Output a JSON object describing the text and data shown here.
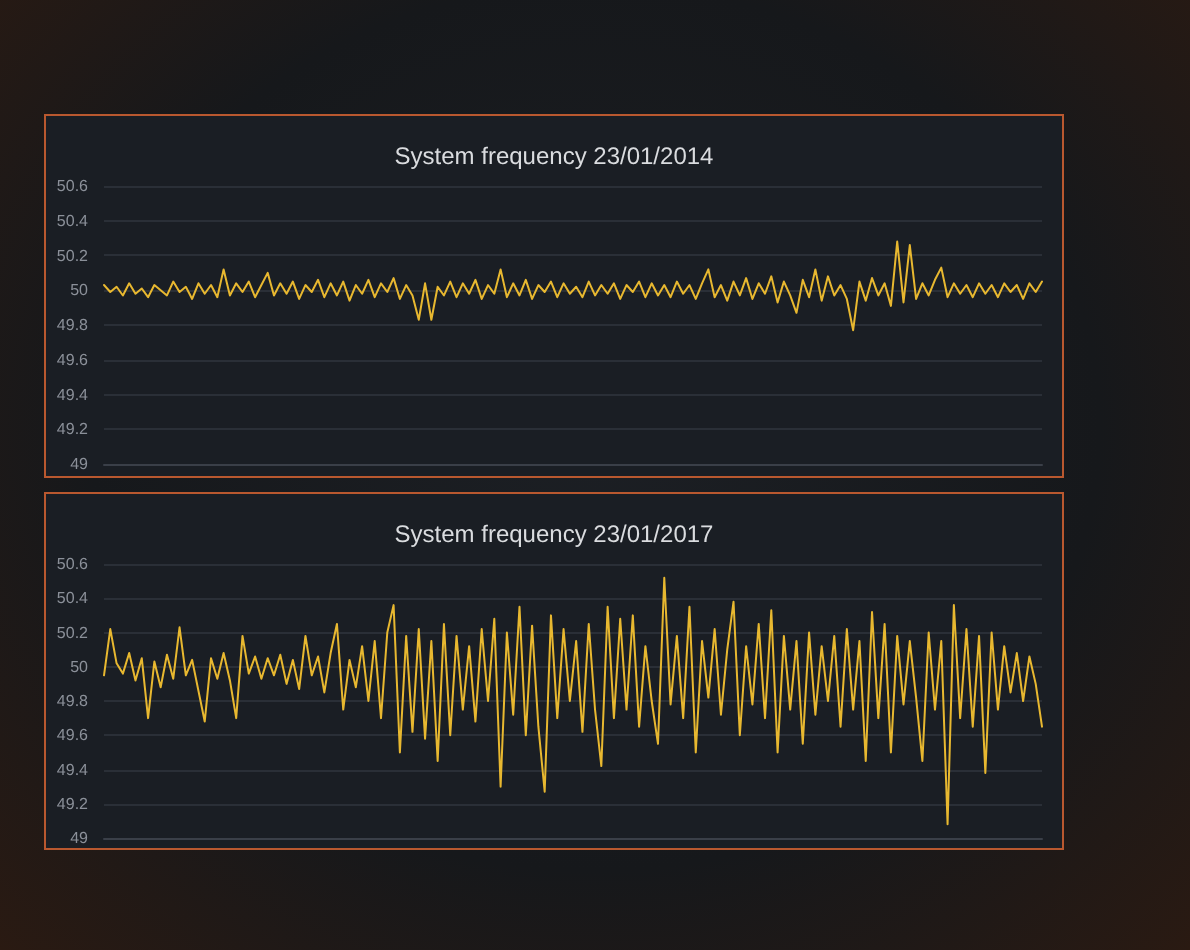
{
  "chart_data": [
    {
      "type": "line",
      "title": "System frequency 23/01/2014",
      "categories": [
        null,
        null,
        null,
        null,
        null,
        null,
        null,
        null,
        null,
        null,
        null,
        null,
        null,
        null,
        null,
        null,
        null,
        null,
        null,
        null,
        null,
        null,
        null,
        null,
        null,
        null,
        null,
        null,
        null,
        null,
        null,
        null,
        null,
        null,
        null,
        null,
        null,
        null,
        null,
        null,
        null,
        null,
        null,
        null,
        null,
        null,
        null,
        null,
        null,
        null,
        null,
        null,
        null,
        null,
        null,
        null,
        null,
        null,
        null,
        null,
        null,
        null,
        null,
        null,
        null,
        null,
        null,
        null,
        null,
        null,
        null,
        null,
        null,
        null,
        null,
        null,
        null,
        null,
        null,
        null,
        null,
        null,
        null,
        null,
        null,
        null,
        null,
        null,
        null,
        null,
        null,
        null,
        null,
        null,
        null,
        null,
        null,
        null,
        null,
        null,
        null,
        null,
        null,
        null,
        null,
        null,
        null,
        null,
        null,
        null,
        null,
        null,
        null,
        null,
        null,
        null,
        null,
        null,
        null,
        null,
        null,
        null,
        null,
        null,
        null,
        null,
        null,
        null,
        null,
        null,
        null,
        null,
        null,
        null,
        null,
        null,
        null,
        null,
        null,
        null,
        null,
        null,
        null,
        null,
        null,
        null,
        null,
        null,
        null,
        null
      ],
      "values": [
        50.03,
        49.99,
        50.02,
        49.97,
        50.04,
        49.98,
        50.01,
        49.96,
        50.03,
        50.0,
        49.97,
        50.05,
        49.99,
        50.02,
        49.95,
        50.04,
        49.98,
        50.03,
        49.96,
        50.12,
        49.97,
        50.04,
        49.99,
        50.05,
        49.96,
        50.03,
        50.1,
        49.97,
        50.04,
        49.98,
        50.05,
        49.95,
        50.03,
        49.99,
        50.06,
        49.96,
        50.04,
        49.97,
        50.05,
        49.94,
        50.03,
        49.98,
        50.06,
        49.96,
        50.04,
        49.99,
        50.07,
        49.95,
        50.03,
        49.97,
        49.83,
        50.04,
        49.83,
        50.02,
        49.97,
        50.05,
        49.96,
        50.04,
        49.98,
        50.06,
        49.95,
        50.03,
        49.98,
        50.12,
        49.96,
        50.04,
        49.97,
        50.06,
        49.95,
        50.03,
        49.99,
        50.05,
        49.96,
        50.04,
        49.98,
        50.02,
        49.96,
        50.05,
        49.97,
        50.03,
        49.98,
        50.04,
        49.95,
        50.03,
        49.99,
        50.05,
        49.96,
        50.04,
        49.97,
        50.03,
        49.96,
        50.05,
        49.98,
        50.03,
        49.95,
        50.04,
        50.12,
        49.96,
        50.03,
        49.94,
        50.05,
        49.97,
        50.07,
        49.95,
        50.04,
        49.98,
        50.08,
        49.93,
        50.05,
        49.97,
        49.87,
        50.06,
        49.96,
        50.12,
        49.94,
        50.08,
        49.97,
        50.03,
        49.95,
        49.77,
        50.05,
        49.94,
        50.07,
        49.97,
        50.04,
        49.91,
        50.28,
        49.93,
        50.26,
        49.95,
        50.04,
        49.97,
        50.06,
        50.13,
        49.96,
        50.04,
        49.98,
        50.03,
        49.96,
        50.04,
        49.98,
        50.03,
        49.96,
        50.04,
        49.99,
        50.03,
        49.95,
        50.04,
        49.99,
        50.05
      ],
      "color": "#e8b830",
      "ylim": [
        49,
        50.6
      ],
      "yticks": [
        49,
        49.2,
        49.4,
        49.6,
        49.8,
        50,
        50.2,
        50.4,
        50.6
      ],
      "grid": "y",
      "tick_labels": "y",
      "line_style": "solid"
    },
    {
      "type": "line",
      "title": "System frequency 23/01/2017",
      "categories": [
        null,
        null,
        null,
        null,
        null,
        null,
        null,
        null,
        null,
        null,
        null,
        null,
        null,
        null,
        null,
        null,
        null,
        null,
        null,
        null,
        null,
        null,
        null,
        null,
        null,
        null,
        null,
        null,
        null,
        null,
        null,
        null,
        null,
        null,
        null,
        null,
        null,
        null,
        null,
        null,
        null,
        null,
        null,
        null,
        null,
        null,
        null,
        null,
        null,
        null,
        null,
        null,
        null,
        null,
        null,
        null,
        null,
        null,
        null,
        null,
        null,
        null,
        null,
        null,
        null,
        null,
        null,
        null,
        null,
        null,
        null,
        null,
        null,
        null,
        null,
        null,
        null,
        null,
        null,
        null,
        null,
        null,
        null,
        null,
        null,
        null,
        null,
        null,
        null,
        null,
        null,
        null,
        null,
        null,
        null,
        null,
        null,
        null,
        null,
        null,
        null,
        null,
        null,
        null,
        null,
        null,
        null,
        null,
        null,
        null,
        null,
        null,
        null,
        null,
        null,
        null,
        null,
        null,
        null,
        null,
        null,
        null,
        null,
        null,
        null,
        null,
        null,
        null,
        null,
        null,
        null,
        null,
        null,
        null,
        null,
        null,
        null,
        null,
        null,
        null,
        null,
        null,
        null,
        null,
        null,
        null,
        null,
        null,
        null,
        null
      ],
      "values": [
        49.95,
        50.22,
        50.02,
        49.96,
        50.08,
        49.92,
        50.05,
        49.7,
        50.03,
        49.88,
        50.07,
        49.93,
        50.23,
        49.95,
        50.04,
        49.86,
        49.68,
        50.05,
        49.93,
        50.08,
        49.92,
        49.7,
        50.18,
        49.96,
        50.06,
        49.93,
        50.05,
        49.95,
        50.07,
        49.9,
        50.04,
        49.87,
        50.18,
        49.95,
        50.06,
        49.85,
        50.08,
        50.25,
        49.75,
        50.04,
        49.88,
        50.12,
        49.8,
        50.15,
        49.7,
        50.2,
        50.36,
        49.5,
        50.18,
        49.62,
        50.22,
        49.58,
        50.15,
        49.45,
        50.25,
        49.6,
        50.18,
        49.75,
        50.12,
        49.68,
        50.22,
        49.8,
        50.28,
        49.3,
        50.2,
        49.72,
        50.35,
        49.6,
        50.24,
        49.65,
        49.27,
        50.3,
        49.7,
        50.22,
        49.8,
        50.15,
        49.62,
        50.25,
        49.75,
        49.42,
        50.35,
        49.7,
        50.28,
        49.75,
        50.3,
        49.65,
        50.12,
        49.8,
        49.55,
        50.52,
        49.78,
        50.18,
        49.7,
        50.35,
        49.5,
        50.15,
        49.82,
        50.22,
        49.72,
        50.1,
        50.38,
        49.6,
        50.12,
        49.78,
        50.25,
        49.7,
        50.33,
        49.5,
        50.18,
        49.75,
        50.15,
        49.55,
        50.2,
        49.72,
        50.12,
        49.8,
        50.18,
        49.65,
        50.22,
        49.75,
        50.15,
        49.45,
        50.32,
        49.7,
        50.25,
        49.5,
        50.18,
        49.78,
        50.15,
        49.82,
        49.45,
        50.2,
        49.75,
        50.15,
        49.08,
        50.36,
        49.7,
        50.22,
        49.65,
        50.18,
        49.38,
        50.2,
        49.75,
        50.12,
        49.85,
        50.08,
        49.8,
        50.06,
        49.9,
        49.65
      ],
      "color": "#e8b830",
      "ylim": [
        49,
        50.6
      ],
      "yticks": [
        49,
        49.2,
        49.4,
        49.6,
        49.8,
        50,
        50.2,
        50.4,
        50.6
      ],
      "grid": "y",
      "tick_labels": "y",
      "line_style": "solid"
    }
  ]
}
